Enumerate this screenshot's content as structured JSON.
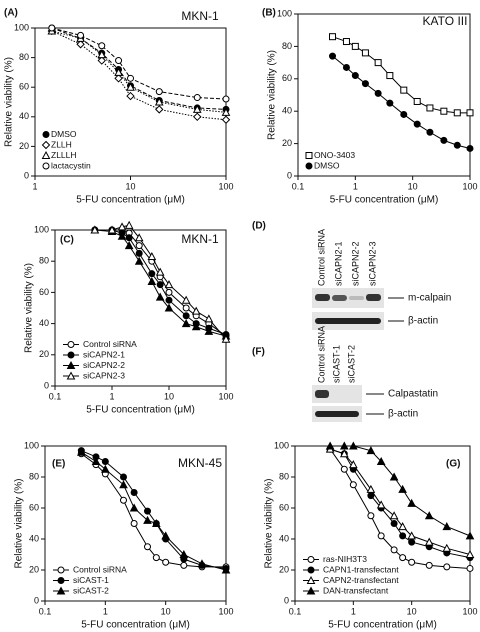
{
  "chart_data": [
    {
      "type": "line",
      "panel": "(A)",
      "title": "MKN-1",
      "log_x": true,
      "xlabel": "5-FU concentration (μM)",
      "ylabel": "Relative viability (%)",
      "xlim": [
        1,
        100
      ],
      "xticks": [
        1,
        10,
        100
      ],
      "ylim": [
        0,
        100
      ],
      "yticks": [
        0,
        20,
        40,
        60,
        80,
        100
      ],
      "legend": "lower left",
      "x": [
        1.5,
        3,
        5,
        7.5,
        10,
        20,
        50,
        100
      ],
      "series": [
        {
          "name": "DMSO",
          "color": "#000000",
          "marker": "circle",
          "filled": true,
          "line_style": "dashed",
          "values": [
            100,
            93,
            83,
            72,
            61,
            51,
            46,
            45
          ]
        },
        {
          "name": "ZLLH",
          "color": "#000000",
          "marker": "diamond",
          "filled": false,
          "line_style": "dotted",
          "values": [
            98,
            89,
            78,
            66,
            54,
            45,
            40,
            38
          ]
        },
        {
          "name": "ZLLLH",
          "color": "#000000",
          "marker": "triangle",
          "filled": false,
          "line_style": "dotted",
          "values": [
            98,
            93,
            82,
            70,
            60,
            50,
            45,
            43
          ]
        },
        {
          "name": "lactacystin",
          "color": "#000000",
          "marker": "circle",
          "filled": false,
          "line_style": "dashed",
          "values": [
            100,
            95,
            88,
            78,
            66,
            57,
            53,
            52
          ]
        }
      ]
    },
    {
      "type": "line",
      "panel": "(B)",
      "title": "KATO III",
      "log_x": true,
      "xlabel": "5-FU concentration (μM)",
      "ylabel": "Relative viability (%)",
      "xlim": [
        0.1,
        100
      ],
      "xticks": [
        0.1,
        1,
        10,
        100
      ],
      "ylim": [
        0,
        100
      ],
      "yticks": [
        0,
        20,
        40,
        60,
        80,
        100
      ],
      "legend": "lower left",
      "x": [
        0.4,
        0.7,
        1,
        1.5,
        2.5,
        4,
        7,
        12,
        20,
        35,
        60,
        100
      ],
      "series": [
        {
          "name": "ONO-3403",
          "color": "#000000",
          "marker": "square",
          "filled": false,
          "line_style": "solid",
          "values": [
            86,
            83,
            80,
            76,
            70,
            62,
            53,
            46,
            42,
            40,
            39,
            39
          ]
        },
        {
          "name": "DMSO",
          "color": "#000000",
          "marker": "circle",
          "filled": true,
          "line_style": "solid",
          "values": [
            74,
            67,
            62,
            57,
            51,
            45,
            38,
            32,
            27,
            22,
            19,
            17
          ]
        }
      ]
    },
    {
      "type": "line",
      "panel": "(C)",
      "title": "MKN-1",
      "log_x": true,
      "xlabel": "5-FU concentration (μM)",
      "ylabel": "Relative viability (%)",
      "xlim": [
        0.1,
        100
      ],
      "xticks": [
        0.1,
        1,
        10,
        100
      ],
      "ylim": [
        0,
        100
      ],
      "yticks": [
        0,
        20,
        40,
        60,
        80,
        100
      ],
      "legend": "lower left",
      "x": [
        0.5,
        1,
        1.5,
        2,
        3,
        5,
        7,
        10,
        20,
        30,
        50,
        100
      ],
      "series": [
        {
          "name": "Control siRNA",
          "color": "#000000",
          "marker": "circle",
          "filled": false,
          "line_style": "solid",
          "values": [
            100,
            100,
            100,
            98,
            90,
            80,
            70,
            60,
            50,
            45,
            40,
            32
          ]
        },
        {
          "name": "siCAPN2-1",
          "color": "#000000",
          "marker": "circle",
          "filled": true,
          "line_style": "solid",
          "values": [
            100,
            100,
            98,
            95,
            85,
            72,
            65,
            55,
            45,
            40,
            37,
            33
          ]
        },
        {
          "name": "siCAPN2-2",
          "color": "#000000",
          "marker": "triangle",
          "filled": true,
          "line_style": "solid",
          "values": [
            100,
            99,
            96,
            90,
            80,
            67,
            57,
            50,
            40,
            38,
            35,
            32
          ]
        },
        {
          "name": "siCAPN2-3",
          "color": "#000000",
          "marker": "triangle",
          "filled": false,
          "line_style": "solid",
          "values": [
            100,
            100,
            102,
            103,
            95,
            83,
            73,
            65,
            55,
            48,
            43,
            30
          ]
        }
      ]
    },
    {
      "type": "line",
      "panel": "(E)",
      "title": "MKN-45",
      "log_x": true,
      "xlabel": "5-FU concentration (μM)",
      "ylabel": "Relative viability (%)",
      "xlim": [
        0.1,
        100
      ],
      "xticks": [
        0.1,
        1,
        10,
        100
      ],
      "ylim": [
        0,
        100
      ],
      "yticks": [
        0,
        20,
        40,
        60,
        80,
        100
      ],
      "legend": "lower left",
      "x": [
        0.4,
        0.7,
        1,
        2,
        3,
        5,
        7,
        10,
        20,
        40,
        100
      ],
      "series": [
        {
          "name": "Control siRNA",
          "color": "#000000",
          "marker": "circle",
          "filled": false,
          "line_style": "solid",
          "values": [
            95,
            88,
            82,
            65,
            50,
            35,
            28,
            25,
            23,
            22,
            22
          ]
        },
        {
          "name": "siCAST-1",
          "color": "#000000",
          "marker": "circle",
          "filled": true,
          "line_style": "solid",
          "values": [
            97,
            93,
            90,
            80,
            70,
            58,
            50,
            40,
            27,
            23,
            21
          ]
        },
        {
          "name": "siCAST-2",
          "color": "#000000",
          "marker": "triangle",
          "filled": true,
          "line_style": "solid",
          "values": [
            96,
            90,
            85,
            75,
            60,
            52,
            50,
            42,
            30,
            24,
            20
          ]
        }
      ]
    },
    {
      "type": "line",
      "panel": "(G)",
      "log_x": true,
      "xlabel": "5-FU concentration (μM)",
      "ylabel": "Relative viability (%)",
      "xlim": [
        0.1,
        100
      ],
      "xticks": [
        0.1,
        1,
        10,
        100
      ],
      "ylim": [
        0,
        100
      ],
      "yticks": [
        0,
        20,
        40,
        60,
        80,
        100
      ],
      "legend": "lower left",
      "x": [
        0.4,
        0.7,
        1,
        2,
        3,
        5,
        7,
        10,
        20,
        40,
        100
      ],
      "series": [
        {
          "name": "ras-NIH3T3",
          "color": "#000000",
          "marker": "circle",
          "filled": false,
          "line_style": "solid",
          "values": [
            98,
            85,
            75,
            55,
            42,
            33,
            28,
            25,
            23,
            22,
            21
          ]
        },
        {
          "name": "CAPN1-transfectant",
          "color": "#000000",
          "marker": "circle",
          "filled": true,
          "line_style": "solid",
          "values": [
            98,
            95,
            85,
            68,
            60,
            50,
            42,
            38,
            35,
            31,
            28
          ]
        },
        {
          "name": "CAPN2-transfectant",
          "color": "#000000",
          "marker": "triangle",
          "filled": false,
          "line_style": "solid",
          "values": [
            98,
            95,
            88,
            72,
            62,
            55,
            48,
            42,
            38,
            34,
            30
          ]
        },
        {
          "name": "DAN-transfectant",
          "color": "#000000",
          "marker": "triangle",
          "filled": true,
          "line_style": "solid",
          "values": [
            100,
            100,
            100,
            97,
            90,
            80,
            72,
            63,
            55,
            48,
            42
          ]
        }
      ]
    }
  ],
  "blots": [
    {
      "panel": "(D)",
      "lanes": [
        "Control siRNA",
        "siCAPN2-1",
        "siCAPN2-2",
        "siCAPN2-3"
      ],
      "bands": [
        "m-calpain",
        "β-actin"
      ]
    },
    {
      "panel": "(F)",
      "lanes": [
        "Control siRNA",
        "siCAST-1",
        "siCAST-2"
      ],
      "bands": [
        "Calpastatin",
        "β-actin"
      ]
    }
  ]
}
